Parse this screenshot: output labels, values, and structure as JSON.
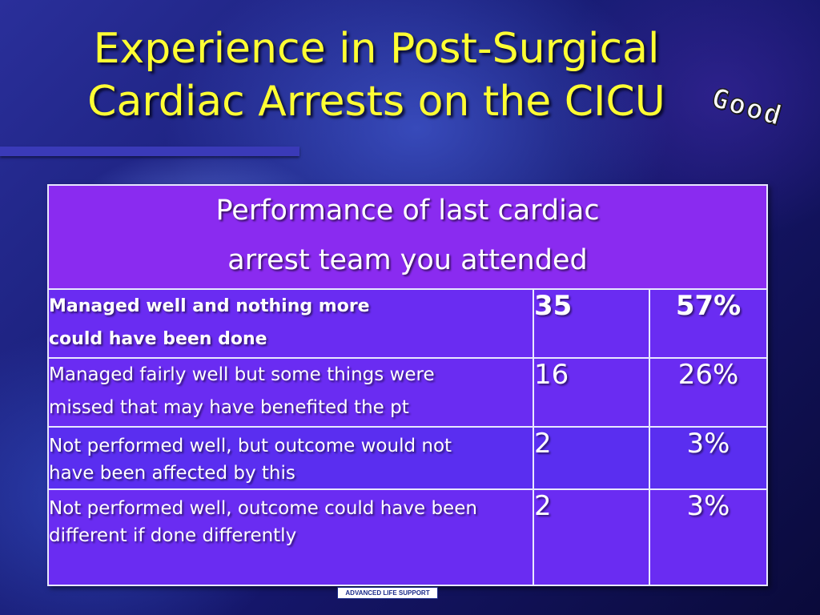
{
  "slide": {
    "title_line1": "Experience in Post-Surgical",
    "title_line2": "Cardiac Arrests on the CICU",
    "stamp": "Good"
  },
  "table": {
    "header_line1": "Performance of last cardiac",
    "header_line2": "arrest team you attended",
    "rows": [
      {
        "label_line1": "Managed well and nothing more",
        "label_line2": "could have been done",
        "count": "35",
        "percent": "57%"
      },
      {
        "label_line1": "Managed fairly well but some things were",
        "label_line2": "missed that may have benefited the pt",
        "count": "16",
        "percent": "26%"
      },
      {
        "label_line1": "Not performed well, but outcome would not",
        "label_line2": "have been affected by this",
        "count": "2",
        "percent": "3%"
      },
      {
        "label_line1": "Not performed well, outcome could have been",
        "label_line2": "different if done differently",
        "count": "2",
        "percent": "3%"
      }
    ]
  },
  "footer": {
    "badge": "ADVANCED LIFE SUPPORT"
  },
  "colors": {
    "title": "#ffff33",
    "header_cell": "#8a2bf0",
    "body_cell": "#6a2cf2"
  }
}
